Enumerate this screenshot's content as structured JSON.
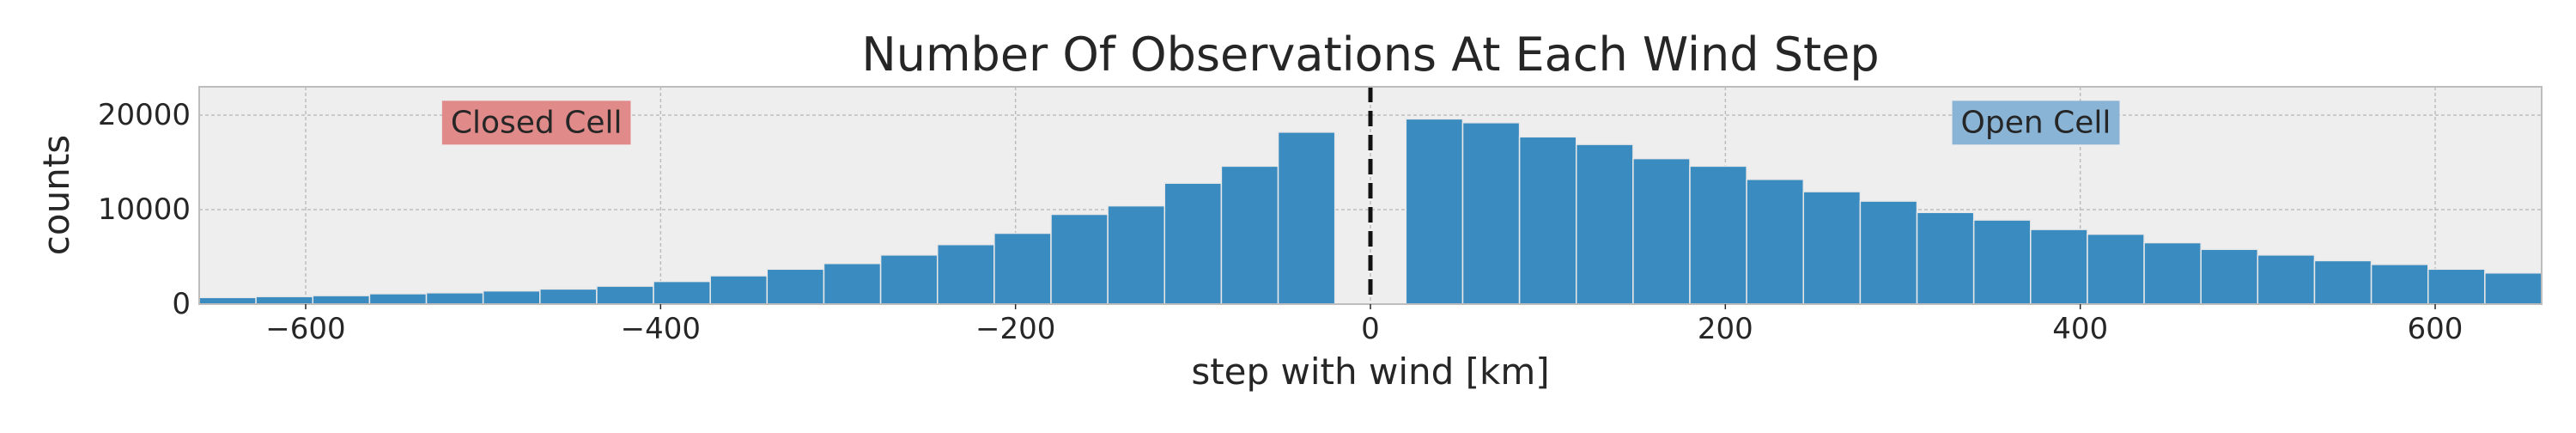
{
  "chart_data": {
    "type": "bar",
    "title": "Number Of Observations At Each Wind Step",
    "xlabel": "step with wind [km]",
    "ylabel": "counts",
    "xlim": [
      -660,
      660
    ],
    "ylim": [
      0,
      23000
    ],
    "grid": true,
    "xticks": [
      -600,
      -400,
      -200,
      0,
      200,
      400,
      600
    ],
    "xtick_labels": [
      "−600",
      "−400",
      "−200",
      "0",
      "200",
      "400",
      "600"
    ],
    "yticks": [
      0,
      10000,
      20000
    ],
    "ytick_labels": [
      "0",
      "10000",
      "20000"
    ],
    "bin_width": 32,
    "bins": [
      {
        "x0": -660,
        "x1": -628,
        "value": 700
      },
      {
        "x0": -628,
        "x1": -596,
        "value": 800
      },
      {
        "x0": -596,
        "x1": -564,
        "value": 900
      },
      {
        "x0": -564,
        "x1": -532,
        "value": 1100
      },
      {
        "x0": -532,
        "x1": -500,
        "value": 1200
      },
      {
        "x0": -500,
        "x1": -468,
        "value": 1400
      },
      {
        "x0": -468,
        "x1": -436,
        "value": 1600
      },
      {
        "x0": -436,
        "x1": -404,
        "value": 1900
      },
      {
        "x0": -404,
        "x1": -372,
        "value": 2400
      },
      {
        "x0": -372,
        "x1": -340,
        "value": 3000
      },
      {
        "x0": -340,
        "x1": -308,
        "value": 3700
      },
      {
        "x0": -308,
        "x1": -276,
        "value": 4300
      },
      {
        "x0": -276,
        "x1": -244,
        "value": 5200
      },
      {
        "x0": -244,
        "x1": -212,
        "value": 6300
      },
      {
        "x0": -212,
        "x1": -180,
        "value": 7500
      },
      {
        "x0": -180,
        "x1": -148,
        "value": 9500
      },
      {
        "x0": -148,
        "x1": -116,
        "value": 10400
      },
      {
        "x0": -116,
        "x1": -84,
        "value": 12800
      },
      {
        "x0": -84,
        "x1": -52,
        "value": 14600
      },
      {
        "x0": -52,
        "x1": -20,
        "value": 18200
      },
      {
        "x0": 20,
        "x1": 52,
        "value": 19600
      },
      {
        "x0": 52,
        "x1": 84,
        "value": 19200
      },
      {
        "x0": 84,
        "x1": 116,
        "value": 17700
      },
      {
        "x0": 116,
        "x1": 148,
        "value": 16900
      },
      {
        "x0": 148,
        "x1": 180,
        "value": 15400
      },
      {
        "x0": 180,
        "x1": 212,
        "value": 14600
      },
      {
        "x0": 212,
        "x1": 244,
        "value": 13200
      },
      {
        "x0": 244,
        "x1": 276,
        "value": 11900
      },
      {
        "x0": 276,
        "x1": 308,
        "value": 10900
      },
      {
        "x0": 308,
        "x1": 340,
        "value": 9700
      },
      {
        "x0": 340,
        "x1": 372,
        "value": 8900
      },
      {
        "x0": 372,
        "x1": 404,
        "value": 7900
      },
      {
        "x0": 404,
        "x1": 436,
        "value": 7400
      },
      {
        "x0": 436,
        "x1": 468,
        "value": 6500
      },
      {
        "x0": 468,
        "x1": 500,
        "value": 5800
      },
      {
        "x0": 500,
        "x1": 532,
        "value": 5200
      },
      {
        "x0": 532,
        "x1": 564,
        "value": 4600
      },
      {
        "x0": 564,
        "x1": 596,
        "value": 4200
      },
      {
        "x0": 596,
        "x1": 628,
        "value": 3700
      },
      {
        "x0": 628,
        "x1": 660,
        "value": 3300
      }
    ],
    "reference_line": {
      "x": 0,
      "style": "dashed"
    },
    "annotations": [
      {
        "text": "Closed Cell",
        "x": -470,
        "y": 19200,
        "box_color": "#e08a8a"
      },
      {
        "text": "Open Cell",
        "x": 375,
        "y": 19200,
        "box_color": "#8ab4d6"
      }
    ],
    "colors": {
      "bar": "#3a8bc0",
      "bar_edge": "#e8e8e8",
      "background": "#eeeeee",
      "grid": "#bdbdbd",
      "frame": "#bdbdbd",
      "reference_line": "#111111"
    }
  }
}
